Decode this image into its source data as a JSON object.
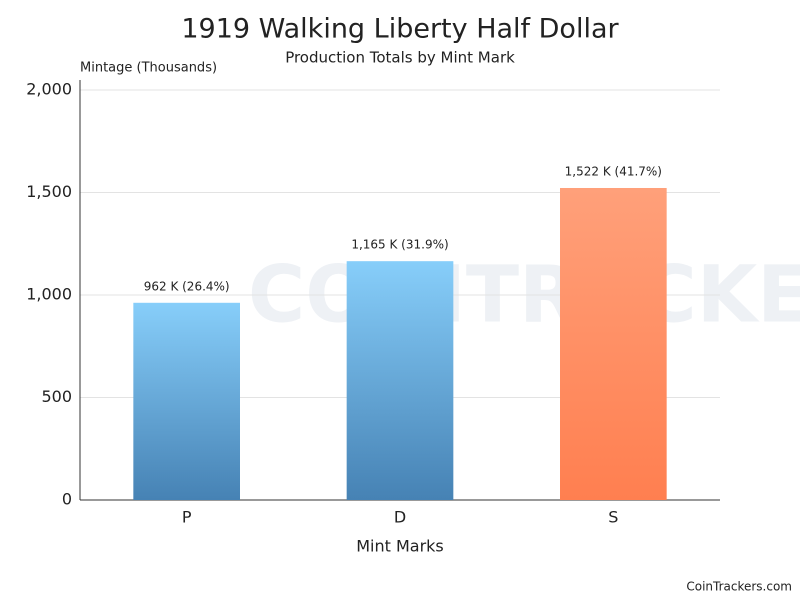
{
  "chart_data": {
    "type": "bar",
    "title": "1919 Walking Liberty Half Dollar",
    "subtitle": "Production Totals by Mint Mark",
    "y_label": "Mintage (Thousands)",
    "x_label": "Mint Marks",
    "categories": [
      "P",
      "D",
      "S"
    ],
    "values": [
      962,
      1165,
      1522
    ],
    "value_labels": [
      "962 K (26.4%)",
      "1,165 K (31.9%)",
      "1,522 K (41.7%)"
    ],
    "colors": [
      "#4682b4",
      "#4682b4",
      "#ff7f50"
    ],
    "top_colors": [
      "#87cefa",
      "#87cefa",
      "#ffa07a"
    ],
    "ylim": [
      0,
      2000
    ],
    "yticks": [
      0,
      500,
      {
        "value": 1000,
        "label": "1,000"
      },
      {
        "value": 1500,
        "label": "1,500"
      },
      {
        "value": 2000,
        "label": "2,000"
      }
    ],
    "grid": true,
    "watermark": "COINTRACKERS",
    "credit": "CoinTrackers.com"
  }
}
